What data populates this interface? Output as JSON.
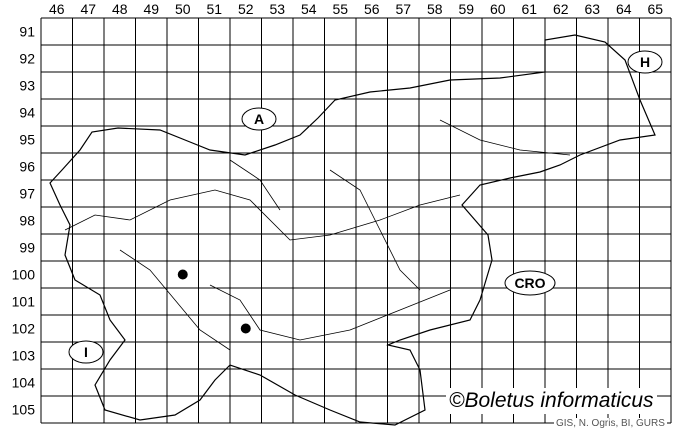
{
  "map": {
    "columns": [
      "46",
      "47",
      "48",
      "49",
      "50",
      "51",
      "52",
      "53",
      "54",
      "55",
      "56",
      "57",
      "58",
      "59",
      "60",
      "61",
      "62",
      "63",
      "64",
      "65"
    ],
    "rows": [
      "91",
      "92",
      "93",
      "94",
      "95",
      "96",
      "97",
      "98",
      "99",
      "100",
      "101",
      "102",
      "103",
      "104",
      "105"
    ],
    "countries": [
      {
        "code": "A"
      },
      {
        "code": "H"
      },
      {
        "code": "CRO"
      },
      {
        "code": "I"
      }
    ],
    "records": [
      {
        "column": "50",
        "row": "100"
      },
      {
        "column": "52",
        "row": "102"
      }
    ],
    "colors": {
      "grid": "#000000",
      "border": "#000000",
      "dots": "#000000",
      "source_text": "#555555"
    }
  },
  "credit": "©Boletus informaticus",
  "source": "GIS, N. Ogris, BI, GURS"
}
